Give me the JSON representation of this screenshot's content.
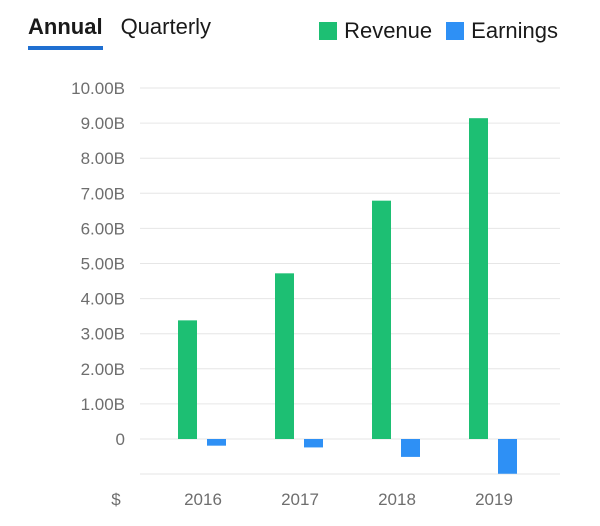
{
  "tabs": [
    {
      "label": "Annual",
      "active": true
    },
    {
      "label": "Quarterly",
      "active": false
    }
  ],
  "legend": [
    {
      "label": "Revenue",
      "color": "#1dbf73"
    },
    {
      "label": "Earnings",
      "color": "#2e90f5"
    }
  ],
  "chart_data": {
    "type": "bar",
    "categories": [
      "2016",
      "2017",
      "2018",
      "2019"
    ],
    "series": [
      {
        "name": "Revenue",
        "color": "#1dbf73",
        "values": [
          3.38,
          4.72,
          6.79,
          9.14
        ]
      },
      {
        "name": "Earnings",
        "color": "#2e90f5",
        "values": [
          -0.19,
          -0.24,
          -0.51,
          -0.99
        ]
      }
    ],
    "yticks": [
      "10.00B",
      "9.00B",
      "8.00B",
      "7.00B",
      "6.00B",
      "5.00B",
      "4.00B",
      "3.00B",
      "2.00B",
      "1.00B",
      "0"
    ],
    "ylim": [
      -1.0,
      10.0
    ],
    "unit_label": "$",
    "grid": true
  }
}
